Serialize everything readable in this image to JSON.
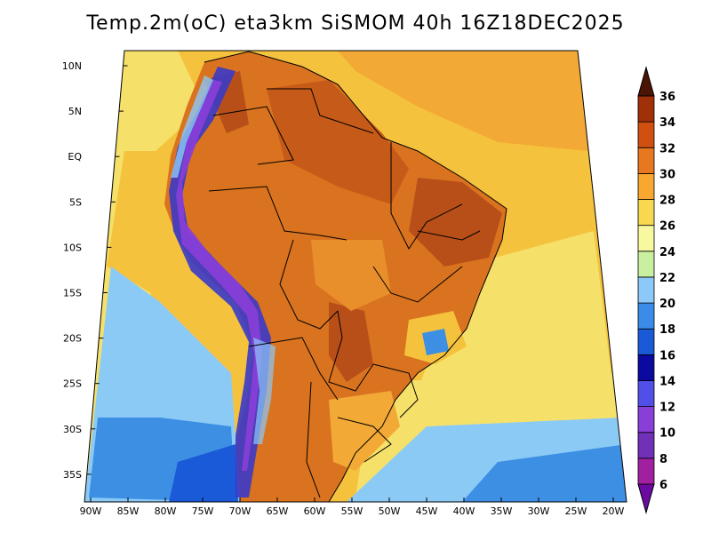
{
  "title": "Temp.2m(oC) eta3km SiSMOM 40h 16Z18DEC2025",
  "map": {
    "lon_range": [
      -91,
      -19.5
    ],
    "lat_range": [
      -38,
      12
    ],
    "lon_ticks": [
      "90W",
      "85W",
      "80W",
      "75W",
      "70W",
      "65W",
      "60W",
      "55W",
      "50W",
      "45W",
      "40W",
      "35W",
      "30W",
      "25W",
      "20W"
    ],
    "lat_ticks": [
      "10N",
      "5N",
      "EQ",
      "5S",
      "10S",
      "15S",
      "20S",
      "25S",
      "30S",
      "35S"
    ],
    "projection": "lambert-conformal",
    "field": "2m temperature",
    "unit": "oC"
  },
  "colorbar": {
    "levels": [
      6,
      8,
      10,
      12,
      14,
      16,
      18,
      20,
      22,
      24,
      26,
      28,
      30,
      32,
      34,
      36
    ],
    "labels": [
      "6",
      "8",
      "10",
      "12",
      "14",
      "16",
      "18",
      "20",
      "22",
      "24",
      "26",
      "28",
      "30",
      "32",
      "34",
      "36"
    ],
    "colors": [
      "#a020a0",
      "#7030b8",
      "#8a3ed8",
      "#5050e8",
      "#0a0aa0",
      "#1a5ad8",
      "#3a8ce8",
      "#8cc8f8",
      "#c8f0a0",
      "#f8f8a0",
      "#f8d850",
      "#f8a830",
      "#e87820",
      "#d05010",
      "#a03008",
      "#6a1e05"
    ],
    "min_color": "#6a0aa0",
    "max_color": "#4a1505"
  },
  "colors": {
    "ocean_warm": "#f5c23e",
    "ocean_tropical": "#f3a935",
    "ocean_mild": "#f5e16a",
    "ocean_cool": "#8ccaf6",
    "ocean_cold": "#3d8fe4",
    "land_hot": "#d9731f",
    "land_very_hot": "#b84f18",
    "andes_cold": "#3a3ac8",
    "border": "#000000"
  }
}
